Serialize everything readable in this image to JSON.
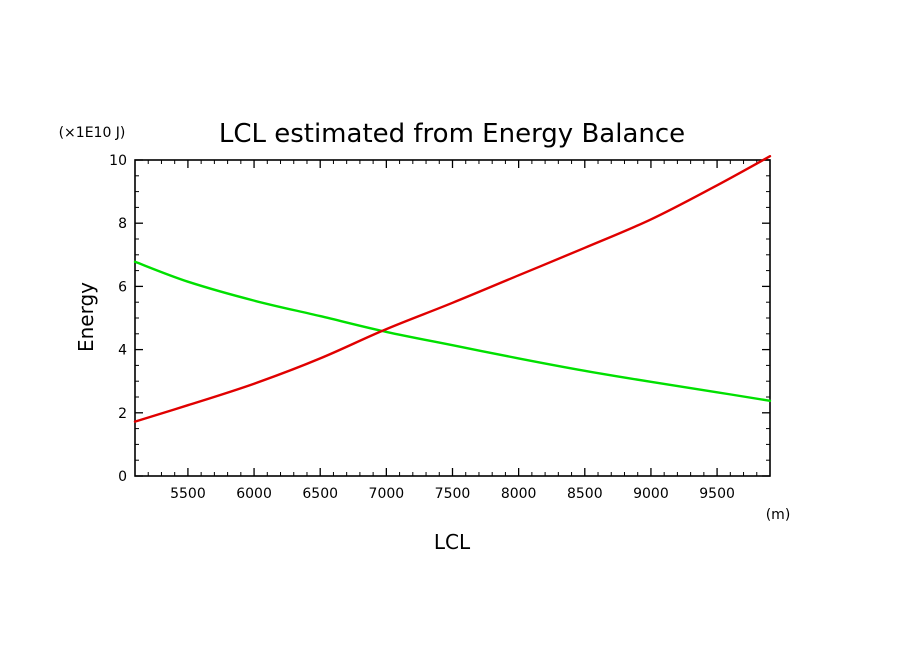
{
  "chart_data": {
    "type": "line",
    "title": "LCL estimated from Energy Balance",
    "xlabel": "LCL",
    "ylabel": "Energy",
    "x_unit": "(m)",
    "y_unit": "(×1E10 J)",
    "xlim": [
      5100,
      9900
    ],
    "ylim": [
      0,
      10
    ],
    "x_ticks": [
      5500,
      6000,
      6500,
      7000,
      7500,
      8000,
      8500,
      9000,
      9500
    ],
    "y_ticks": [
      0,
      2,
      4,
      6,
      8,
      10
    ],
    "x_minor_step": 100,
    "y_minor_step": 0.5,
    "grid": false,
    "series": [
      {
        "name": "green-curve",
        "color": "#00e000",
        "x": [
          5100,
          5500,
          6000,
          6500,
          7000,
          7500,
          8000,
          8500,
          9000,
          9500,
          9900
        ],
        "values": [
          6.78,
          6.15,
          5.55,
          5.06,
          4.56,
          4.14,
          3.72,
          3.33,
          2.98,
          2.65,
          2.38
        ]
      },
      {
        "name": "red-curve",
        "color": "#e00000",
        "x": [
          5100,
          5500,
          6000,
          6500,
          7000,
          7500,
          8000,
          8500,
          9000,
          9500,
          9900
        ],
        "values": [
          1.72,
          2.24,
          2.92,
          3.72,
          4.65,
          5.48,
          6.35,
          7.22,
          8.12,
          9.2,
          10.12
        ]
      }
    ]
  }
}
